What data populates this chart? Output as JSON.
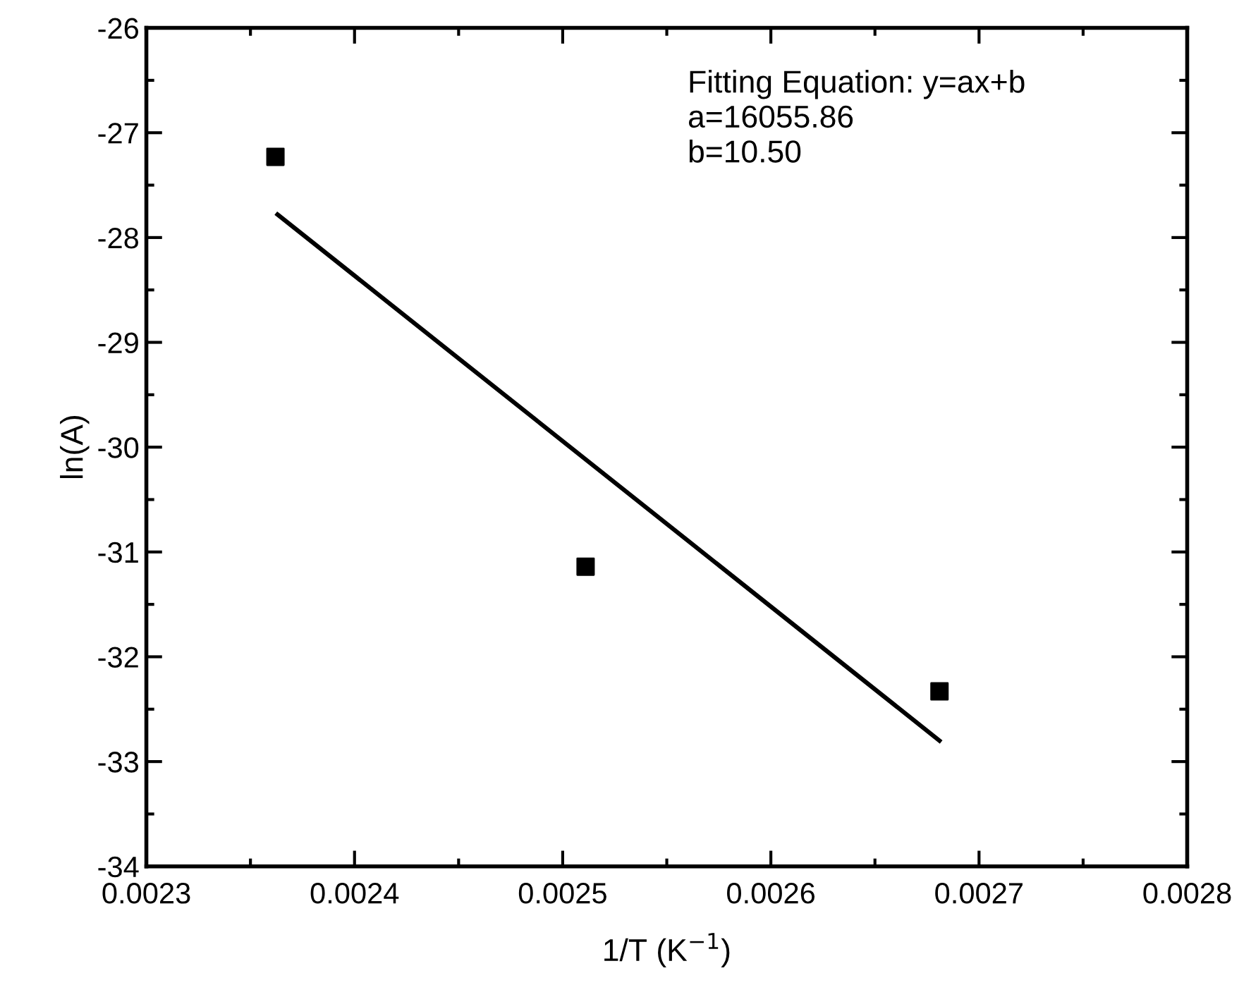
{
  "chart_data": {
    "type": "scatter",
    "xlabel": "1/T (K$^{−1}$)",
    "ylabel": "ln(A)",
    "annotations": [
      "Fitting Equation: y=ax+b\na=16055.86\nb=10.50"
    ],
    "series": [
      {
        "color": "#000000",
        "marker": "square",
        "x": [
          0.002362,
          0.002511,
          0.002681
        ],
        "values": [
          -27.23,
          -31.14,
          -32.33
        ]
      },
      {
        "type": "line",
        "color": "#000000",
        "marker": "none",
        "line_style": "solid",
        "x": [
          0.002363,
          0.002681
        ],
        "values": [
          -27.78,
          -32.8
        ]
      }
    ],
    "xlim": [
      0.0023,
      0.0028
    ],
    "xticks": [
      0.0023,
      0.0024,
      0.0025,
      0.0026,
      0.0027,
      0.0028
    ],
    "ylim": [
      -34,
      -26
    ],
    "yticks": [
      -34,
      -33,
      -32,
      -31,
      -30,
      -29,
      -28,
      -27,
      -26
    ],
    "grid": false,
    "legend": false
  }
}
